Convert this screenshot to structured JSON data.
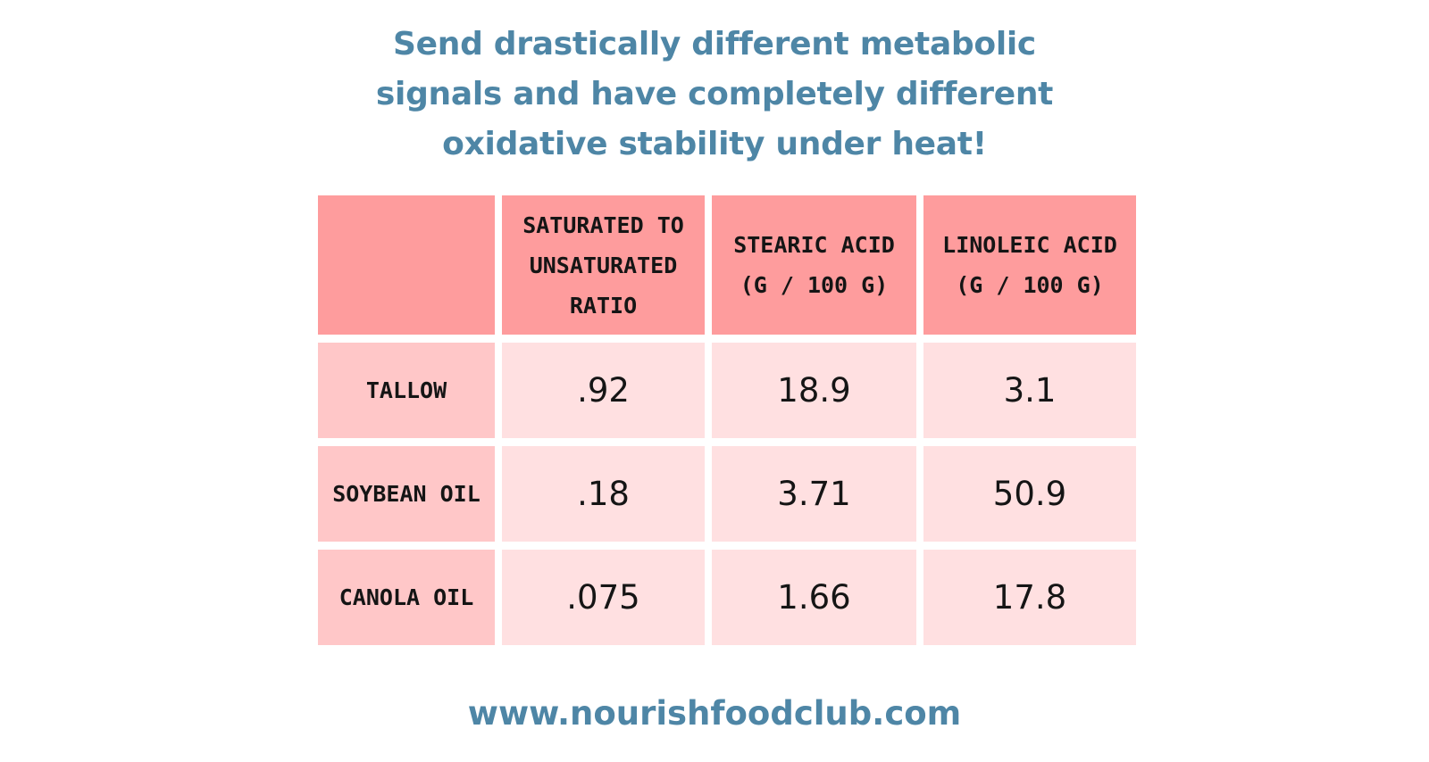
{
  "headline": {
    "lines": [
      "Send drastically different metabolic",
      "signals and have completely different",
      "oxidative stability under heat!"
    ]
  },
  "chart_data": {
    "type": "table",
    "columns": [
      "",
      "SATURATED TO UNSATURATED RATIO",
      "STEARIC ACID (G / 100 G)",
      "LINOLEIC ACID (G / 100 G)"
    ],
    "rows": [
      {
        "label": "TALLOW",
        "values": [
          ".92",
          "18.9",
          "3.1"
        ]
      },
      {
        "label": "SOYBEAN OIL",
        "values": [
          ".18",
          "3.71",
          "50.9"
        ]
      },
      {
        "label": "CANOLA OIL",
        "values": [
          ".075",
          "1.66",
          "17.8"
        ]
      }
    ]
  },
  "footer": {
    "url": "www.nourishfoodclub.com"
  },
  "colors": {
    "accent_text": "#4e86a6",
    "header_fill": "#fe9c9d",
    "row_label_fill": "#ffc7c8",
    "value_fill": "#ffe0e1"
  }
}
